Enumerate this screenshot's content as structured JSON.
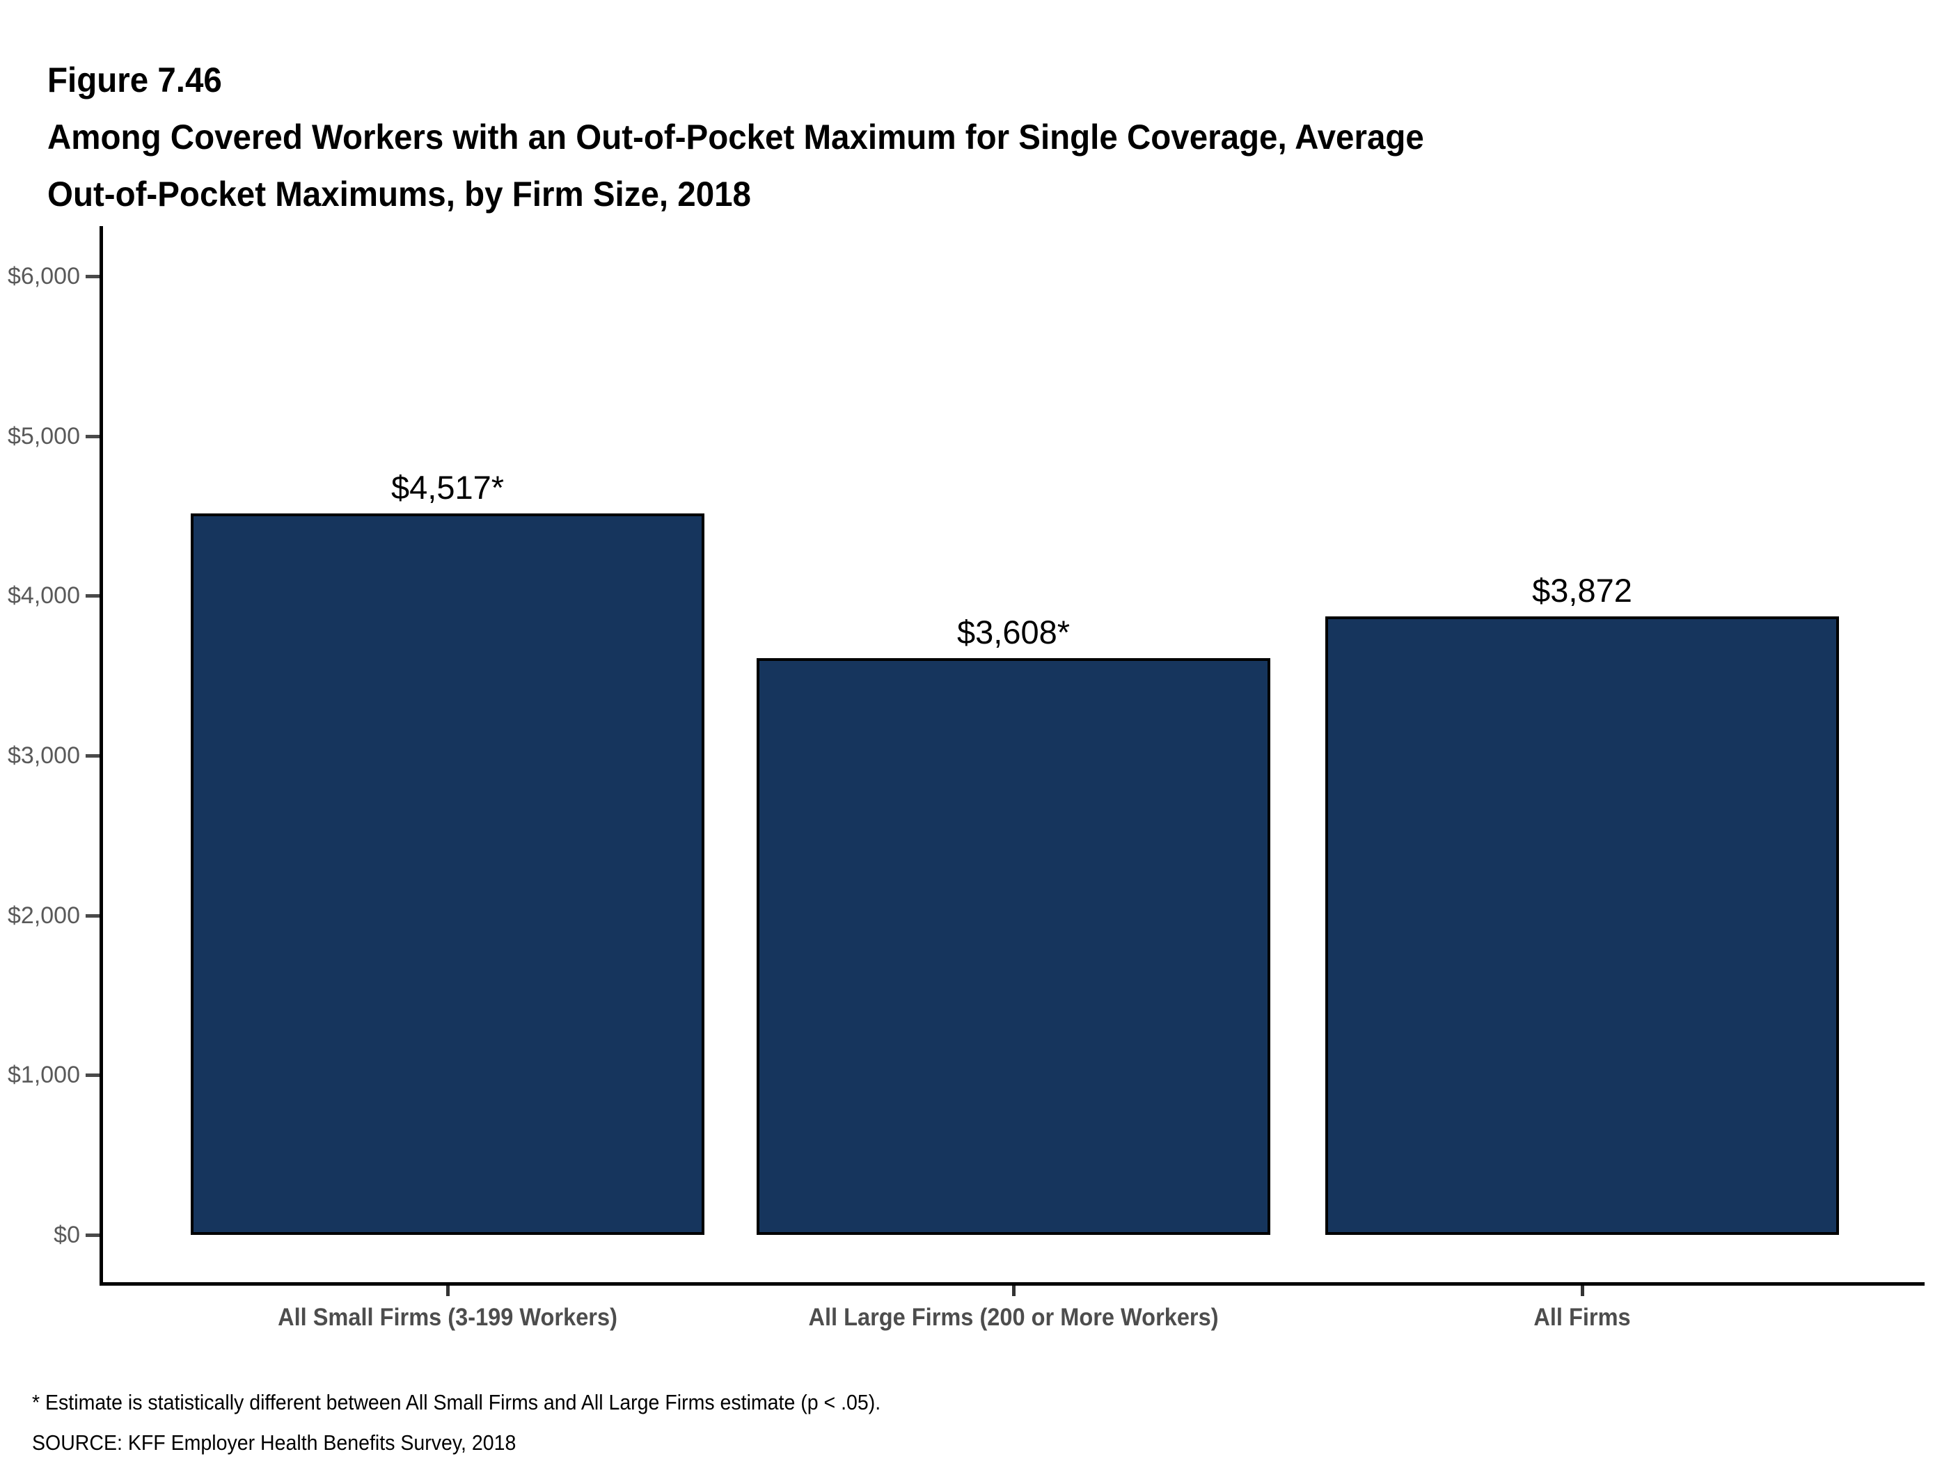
{
  "header": {
    "figure_number": "Figure 7.46",
    "title_line1": "Among Covered Workers with an Out-of-Pocket Maximum for Single Coverage, Average",
    "title_line2": "Out-of-Pocket Maximums, by Firm Size, 2018"
  },
  "chart_data": {
    "type": "bar",
    "title": "Among Covered Workers with an Out-of-Pocket Maximum for Single Coverage, Average Out-of-Pocket Maximums, by Firm Size, 2018",
    "categories": [
      "All Small Firms (3-199 Workers)",
      "All Large Firms (200 or More Workers)",
      "All Firms"
    ],
    "values": [
      4517,
      3608,
      3872
    ],
    "value_labels": [
      "$4,517*",
      "$3,608*",
      "$3,872"
    ],
    "xlabel": "",
    "ylabel": "",
    "ylim": [
      0,
      6000
    ],
    "y_ticks": [
      {
        "value": 0,
        "label": "$0"
      },
      {
        "value": 1000,
        "label": "$1,000"
      },
      {
        "value": 2000,
        "label": "$2,000"
      },
      {
        "value": 3000,
        "label": "$3,000"
      },
      {
        "value": 4000,
        "label": "$4,000"
      },
      {
        "value": 5000,
        "label": "$5,000"
      },
      {
        "value": 6000,
        "label": "$6,000"
      }
    ],
    "grid": false,
    "legend": false,
    "bar_color": "#16355D",
    "bar_border_color": "#000000",
    "axis_line_color": "#000000",
    "axis_tick_label_color": "#595959",
    "category_label_color": "#4D4D4D"
  },
  "footnotes": {
    "note": "* Estimate is statistically different between All Small Firms and All Large Firms estimate (p < .05).",
    "source": "SOURCE: KFF Employer Health Benefits Survey, 2018"
  }
}
